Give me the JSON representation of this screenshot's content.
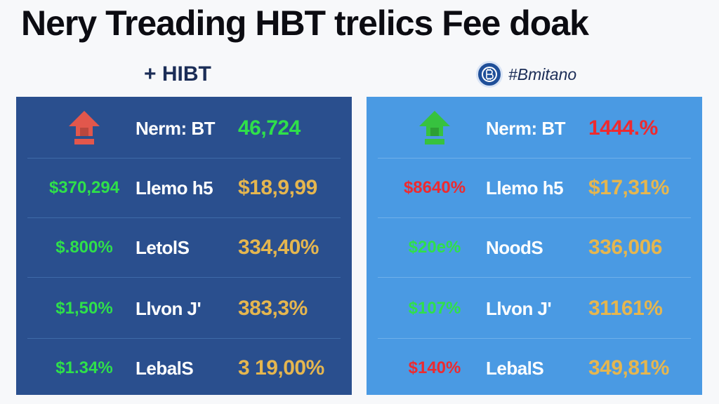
{
  "title": "Nery Treading HBT trelics Fee doak",
  "colors": {
    "left_panel": "#2a4f8e",
    "right_panel": "#4a9ae3",
    "positive": "#2fe04a",
    "negative": "#ee2a2f",
    "value": "#e5b64f"
  },
  "left": {
    "header": "+ HIBT",
    "icon": "house-arrow-up-red-icon",
    "rows": [
      {
        "first": "",
        "label": "Nerm: BT",
        "value": "46,724",
        "first_color": "green",
        "value_color": "green"
      },
      {
        "first": "$370,294",
        "label": "Llemo h5",
        "value": "$18,9,99",
        "first_color": "green",
        "value_color": "gold"
      },
      {
        "first": "$.800%",
        "label": "LetolS",
        "value": "334,40%",
        "first_color": "green",
        "value_color": "gold"
      },
      {
        "first": "$1,50%",
        "label": "Llvon J'",
        "value": "383,3%",
        "first_color": "green",
        "value_color": "gold"
      },
      {
        "first": "$1.34%",
        "label": "LebalS",
        "value": "3 19,00%",
        "first_color": "green",
        "value_color": "gold"
      }
    ]
  },
  "right": {
    "header": "#Bmitano",
    "logo": "bitcoin-logo-icon",
    "icon": "house-arrow-up-green-icon",
    "rows": [
      {
        "first": "",
        "label": "Nerm: BT",
        "value": "1444.%",
        "first_color": "green",
        "value_color": "red"
      },
      {
        "first": "$8640%",
        "label": "Llemo h5",
        "value": "$17,31%",
        "first_color": "red",
        "value_color": "gold"
      },
      {
        "first": "$20e%",
        "label": "NoodS",
        "value": "336,006",
        "first_color": "green",
        "value_color": "gold"
      },
      {
        "first": "$107%",
        "label": "Llvon J'",
        "value": "31161%",
        "first_color": "green",
        "value_color": "gold"
      },
      {
        "first": "$140%",
        "label": "LebalS",
        "value": "349,81%",
        "first_color": "red",
        "value_color": "gold"
      }
    ]
  }
}
